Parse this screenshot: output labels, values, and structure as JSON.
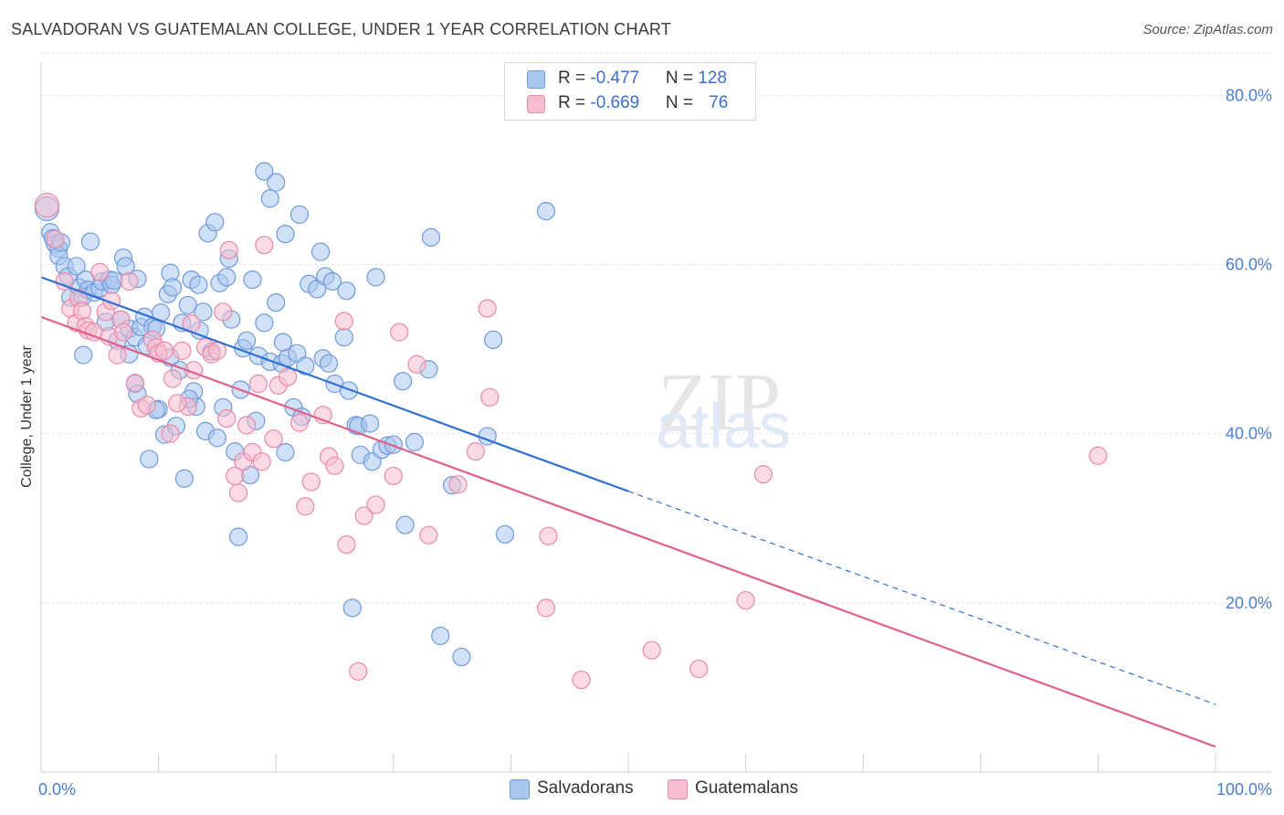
{
  "header": {
    "title": "SALVADORAN VS GUATEMALAN COLLEGE, UNDER 1 YEAR CORRELATION CHART",
    "source": "Source: ZipAtlas.com"
  },
  "legend": {
    "rows": [
      {
        "r_label": "R = ",
        "r_value": "-0.477",
        "n_label": "N = ",
        "n_value": "128"
      },
      {
        "r_label": "R = ",
        "r_value": "-0.669",
        "n_label": "N = ",
        "n_value": "76"
      }
    ]
  },
  "bottom_legend": [
    "Salvadorans",
    "Guatemalans"
  ],
  "colors": {
    "salvadoran_fill": "#a9c6ee",
    "salvadoran_stroke": "#6f9ad9",
    "salvadoran_line": "#2f6fd0",
    "guatemalan_fill": "#f5bed0",
    "guatemalan_stroke": "#e88aa8",
    "guatemalan_line": "#e0608a",
    "tick": "#4a7fd0",
    "grid": "#e3e3e3"
  },
  "chart_data": {
    "type": "scatter",
    "title": "SALVADORAN VS GUATEMALAN COLLEGE, UNDER 1 YEAR CORRELATION CHART",
    "xlabel": "",
    "ylabel": "College, Under 1 year",
    "xlim": [
      0,
      100
    ],
    "ylim": [
      0,
      85
    ],
    "x_tick_labels": [
      "0.0%",
      "100.0%"
    ],
    "y_ticks": [
      20,
      40,
      60,
      80
    ],
    "y_tick_labels": [
      "20.0%",
      "40.0%",
      "60.0%",
      "80.0%"
    ],
    "grid": true,
    "legend_position": "top-center",
    "watermark": "ZIPatlas",
    "series": [
      {
        "name": "Salvadorans",
        "r": -0.477,
        "n": 128,
        "trend": {
          "x0": 0,
          "y0": 58.5,
          "x1": 50,
          "y1": 33.2,
          "dashed_to_x": 100,
          "dashed_to_y": 8.0
        },
        "points": [
          [
            0.5,
            66.6
          ],
          [
            0.8,
            63.8
          ],
          [
            1.0,
            63.1
          ],
          [
            1.2,
            62.4
          ],
          [
            1.5,
            61.9
          ],
          [
            1.5,
            61.0
          ],
          [
            1.7,
            62.6
          ],
          [
            2.0,
            59.8
          ],
          [
            2.3,
            58.6
          ],
          [
            2.5,
            56.1
          ],
          [
            3.0,
            59.8
          ],
          [
            3.2,
            57.3
          ],
          [
            3.5,
            56.1
          ],
          [
            3.8,
            58.2
          ],
          [
            4.0,
            57.0
          ],
          [
            4.2,
            62.7
          ],
          [
            4.5,
            56.7
          ],
          [
            5.0,
            57.2
          ],
          [
            5.2,
            58.0
          ],
          [
            5.5,
            53.2
          ],
          [
            5.8,
            58.2
          ],
          [
            6.0,
            57.6
          ],
          [
            6.2,
            58.1
          ],
          [
            6.5,
            51.0
          ],
          [
            6.8,
            53.5
          ],
          [
            7.0,
            60.8
          ],
          [
            7.2,
            59.8
          ],
          [
            7.5,
            52.4
          ],
          [
            7.5,
            49.4
          ],
          [
            8.0,
            51.4
          ],
          [
            8.0,
            45.9
          ],
          [
            8.2,
            44.7
          ],
          [
            8.5,
            52.6
          ],
          [
            8.8,
            53.8
          ],
          [
            9.0,
            50.4
          ],
          [
            9.2,
            37.0
          ],
          [
            9.5,
            52.6
          ],
          [
            9.8,
            52.4
          ],
          [
            10.0,
            42.9
          ],
          [
            10.2,
            54.3
          ],
          [
            10.5,
            39.9
          ],
          [
            10.8,
            56.5
          ],
          [
            11.0,
            59.0
          ],
          [
            11.0,
            49.0
          ],
          [
            11.2,
            57.3
          ],
          [
            11.5,
            40.9
          ],
          [
            11.8,
            47.5
          ],
          [
            12.0,
            53.1
          ],
          [
            12.2,
            34.7
          ],
          [
            12.5,
            55.2
          ],
          [
            12.8,
            58.2
          ],
          [
            13.0,
            45.0
          ],
          [
            13.2,
            43.2
          ],
          [
            13.5,
            52.2
          ],
          [
            13.8,
            54.4
          ],
          [
            14.0,
            40.3
          ],
          [
            14.2,
            63.7
          ],
          [
            14.5,
            49.7
          ],
          [
            14.8,
            65.0
          ],
          [
            15.0,
            39.5
          ],
          [
            15.2,
            57.8
          ],
          [
            15.5,
            43.1
          ],
          [
            15.8,
            58.5
          ],
          [
            16.0,
            60.7
          ],
          [
            16.2,
            53.5
          ],
          [
            16.5,
            37.9
          ],
          [
            16.8,
            27.8
          ],
          [
            17.0,
            45.2
          ],
          [
            17.2,
            50.1
          ],
          [
            17.5,
            51.0
          ],
          [
            17.8,
            35.1
          ],
          [
            18.0,
            58.2
          ],
          [
            18.5,
            49.2
          ],
          [
            19.0,
            53.1
          ],
          [
            19.0,
            71.0
          ],
          [
            19.5,
            67.8
          ],
          [
            19.5,
            48.5
          ],
          [
            20.0,
            55.5
          ],
          [
            20.0,
            69.7
          ],
          [
            20.5,
            48.3
          ],
          [
            20.8,
            37.8
          ],
          [
            20.8,
            63.6
          ],
          [
            21.0,
            49.0
          ],
          [
            21.5,
            43.1
          ],
          [
            21.8,
            49.5
          ],
          [
            22.0,
            65.9
          ],
          [
            22.2,
            42.0
          ],
          [
            22.5,
            48.0
          ],
          [
            22.8,
            57.7
          ],
          [
            23.5,
            57.1
          ],
          [
            23.8,
            61.5
          ],
          [
            24.0,
            48.9
          ],
          [
            24.2,
            58.6
          ],
          [
            24.5,
            48.3
          ],
          [
            24.8,
            58.0
          ],
          [
            25.0,
            45.9
          ],
          [
            25.8,
            51.4
          ],
          [
            26.0,
            56.9
          ],
          [
            26.2,
            45.1
          ],
          [
            26.5,
            19.4
          ],
          [
            26.8,
            41.0
          ],
          [
            27.0,
            40.9
          ],
          [
            27.2,
            37.5
          ],
          [
            28.0,
            41.2
          ],
          [
            28.2,
            36.7
          ],
          [
            28.5,
            58.5
          ],
          [
            29.0,
            38.1
          ],
          [
            29.5,
            38.6
          ],
          [
            30.0,
            38.7
          ],
          [
            30.8,
            46.2
          ],
          [
            31.0,
            29.2
          ],
          [
            31.8,
            39.0
          ],
          [
            33.0,
            47.6
          ],
          [
            33.2,
            63.2
          ],
          [
            34.0,
            16.1
          ],
          [
            35.0,
            33.9
          ],
          [
            35.8,
            13.6
          ],
          [
            38.0,
            39.7
          ],
          [
            38.5,
            51.1
          ],
          [
            39.5,
            28.1
          ],
          [
            43.0,
            66.3
          ],
          [
            8.2,
            58.3
          ],
          [
            9.8,
            42.8
          ],
          [
            12.6,
            44.1
          ],
          [
            13.4,
            57.6
          ],
          [
            3.6,
            49.3
          ],
          [
            20.6,
            50.8
          ],
          [
            18.3,
            41.5
          ]
        ]
      },
      {
        "name": "Guatemalans",
        "r": -0.669,
        "n": 76,
        "trend": {
          "x0": 0,
          "y0": 53.8,
          "x1": 100,
          "y1": 3.0
        },
        "points": [
          [
            0.5,
            67.0
          ],
          [
            1.2,
            63.0
          ],
          [
            2.0,
            58.0
          ],
          [
            2.5,
            54.8
          ],
          [
            3.0,
            53.1
          ],
          [
            3.2,
            56.0
          ],
          [
            3.5,
            54.5
          ],
          [
            3.8,
            52.7
          ],
          [
            4.0,
            52.2
          ],
          [
            4.5,
            52.0
          ],
          [
            5.0,
            59.1
          ],
          [
            5.5,
            54.4
          ],
          [
            5.8,
            51.5
          ],
          [
            6.0,
            55.7
          ],
          [
            6.5,
            49.3
          ],
          [
            6.8,
            53.5
          ],
          [
            7.0,
            52.0
          ],
          [
            7.5,
            58.0
          ],
          [
            8.0,
            46.0
          ],
          [
            8.5,
            43.0
          ],
          [
            9.0,
            43.4
          ],
          [
            9.5,
            51.1
          ],
          [
            9.8,
            50.2
          ],
          [
            10.0,
            49.5
          ],
          [
            10.5,
            49.8
          ],
          [
            11.0,
            40.0
          ],
          [
            11.2,
            46.5
          ],
          [
            12.0,
            49.8
          ],
          [
            12.5,
            43.2
          ],
          [
            12.8,
            53.0
          ],
          [
            13.0,
            47.5
          ],
          [
            14.0,
            50.2
          ],
          [
            14.5,
            49.4
          ],
          [
            15.0,
            49.8
          ],
          [
            15.5,
            54.4
          ],
          [
            15.8,
            41.8
          ],
          [
            16.0,
            61.7
          ],
          [
            16.5,
            35.0
          ],
          [
            16.8,
            33.0
          ],
          [
            17.2,
            36.7
          ],
          [
            17.5,
            41.0
          ],
          [
            18.0,
            37.8
          ],
          [
            18.5,
            45.9
          ],
          [
            18.8,
            36.7
          ],
          [
            19.0,
            62.3
          ],
          [
            19.8,
            39.4
          ],
          [
            20.2,
            45.7
          ],
          [
            21.0,
            46.7
          ],
          [
            22.0,
            41.3
          ],
          [
            22.5,
            31.4
          ],
          [
            23.0,
            34.3
          ],
          [
            24.0,
            42.2
          ],
          [
            24.5,
            37.3
          ],
          [
            25.0,
            36.2
          ],
          [
            25.8,
            53.3
          ],
          [
            26.0,
            26.9
          ],
          [
            27.0,
            11.9
          ],
          [
            27.5,
            30.3
          ],
          [
            28.5,
            31.6
          ],
          [
            30.5,
            52.0
          ],
          [
            30.0,
            35.0
          ],
          [
            32.0,
            48.2
          ],
          [
            33.0,
            28.0
          ],
          [
            35.5,
            34.0
          ],
          [
            37.0,
            37.9
          ],
          [
            38.0,
            54.8
          ],
          [
            38.2,
            44.3
          ],
          [
            43.0,
            19.4
          ],
          [
            43.2,
            27.9
          ],
          [
            46.0,
            10.9
          ],
          [
            52.0,
            14.4
          ],
          [
            56.0,
            12.2
          ],
          [
            60.0,
            20.3
          ],
          [
            61.5,
            35.2
          ],
          [
            90.0,
            37.4
          ],
          [
            11.6,
            43.6
          ]
        ]
      }
    ]
  }
}
